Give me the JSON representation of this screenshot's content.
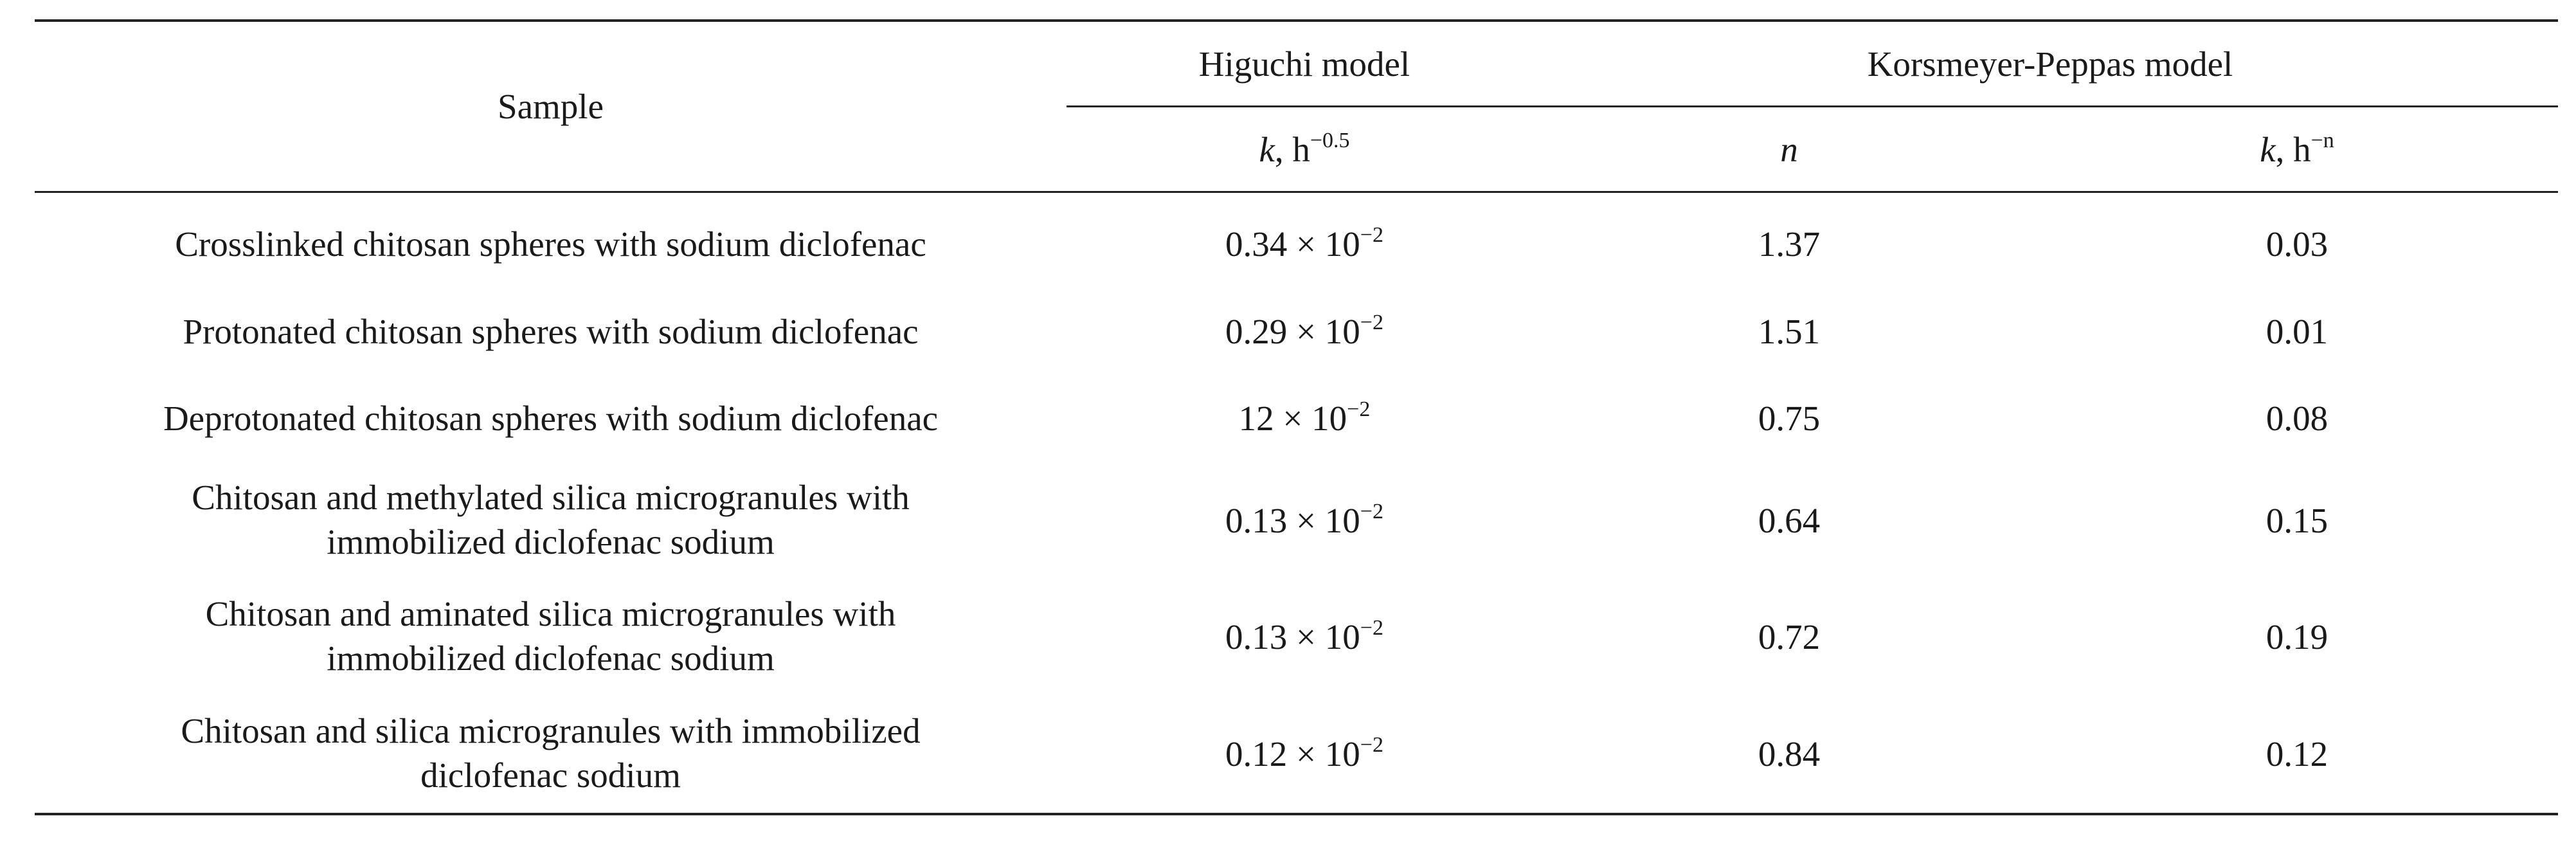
{
  "table": {
    "header": {
      "sample": "Sample",
      "higuchi_group": "Higuchi model",
      "kp_group": "Korsmeyer-Peppas model",
      "higuchi_k": "k",
      "higuchi_k_unit": ", h",
      "higuchi_k_exp": "−0.5",
      "kp_n": "n",
      "kp_k": "k",
      "kp_k_unit": ", h",
      "kp_k_exp": "−n"
    },
    "rows": [
      {
        "sample_line1": "Crosslinked chitosan spheres with sodium diclofenac",
        "sample_line2": "",
        "hig_mantissa": "0.34 × 10",
        "hig_exp": "−2",
        "n": "1.37",
        "k": "0.03"
      },
      {
        "sample_line1": "Protonated chitosan spheres with sodium diclofenac",
        "sample_line2": "",
        "hig_mantissa": "0.29 × 10",
        "hig_exp": "−2",
        "n": "1.51",
        "k": "0.01"
      },
      {
        "sample_line1": "Deprotonated chitosan spheres with sodium diclofenac",
        "sample_line2": "",
        "hig_mantissa": "12 × 10",
        "hig_exp": "−2",
        "n": "0.75",
        "k": "0.08"
      },
      {
        "sample_line1": "Chitosan and methylated silica microgranules with",
        "sample_line2": "immobilized diclofenac sodium",
        "hig_mantissa": "0.13 × 10",
        "hig_exp": "−2",
        "n": "0.64",
        "k": "0.15"
      },
      {
        "sample_line1": "Chitosan and aminated silica microgranules with",
        "sample_line2": "immobilized diclofenac sodium",
        "hig_mantissa": "0.13 × 10",
        "hig_exp": "−2",
        "n": "0.72",
        "k": "0.19"
      },
      {
        "sample_line1": "Chitosan and silica microgranules with immobilized",
        "sample_line2": "diclofenac sodium",
        "hig_mantissa": "0.12 × 10",
        "hig_exp": "−2",
        "n": "0.84",
        "k": "0.12"
      }
    ]
  }
}
